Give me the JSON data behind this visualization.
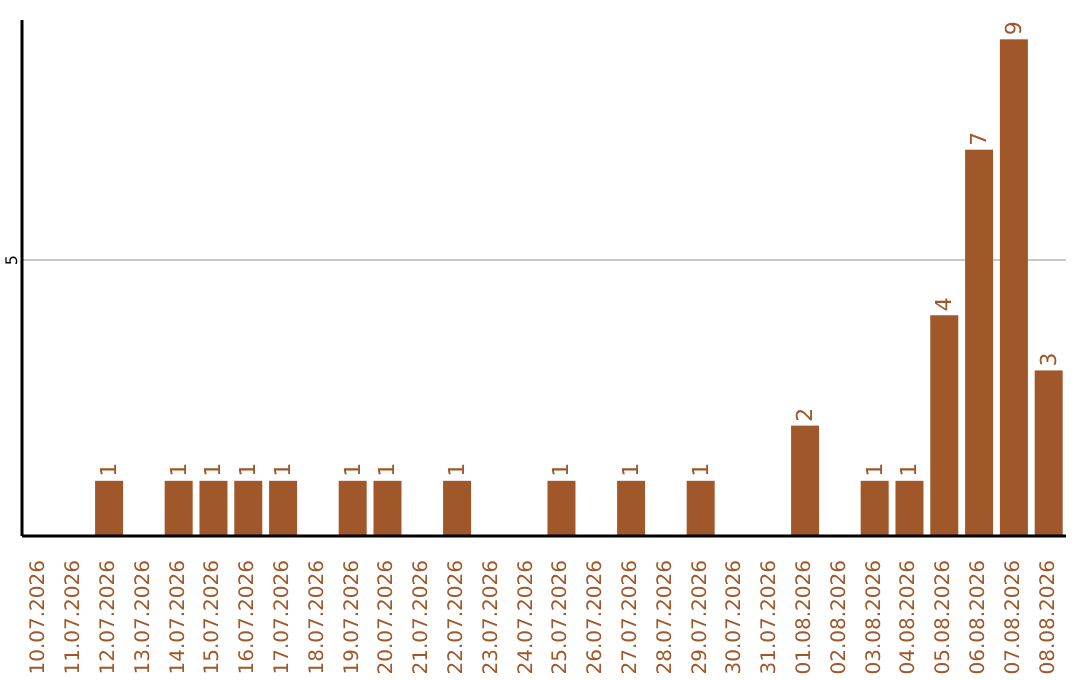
{
  "chart_data": {
    "type": "bar",
    "categories": [
      "10.07.2026",
      "11.07.2026",
      "12.07.2026",
      "13.07.2026",
      "14.07.2026",
      "15.07.2026",
      "16.07.2026",
      "17.07.2026",
      "18.07.2026",
      "19.07.2026",
      "20.07.2026",
      "21.07.2026",
      "22.07.2026",
      "23.07.2026",
      "24.07.2026",
      "25.07.2026",
      "26.07.2026",
      "27.07.2026",
      "28.07.2026",
      "29.07.2026",
      "30.07.2026",
      "31.07.2026",
      "01.08.2026",
      "02.08.2026",
      "03.08.2026",
      "04.08.2026",
      "05.08.2026",
      "06.08.2026",
      "07.08.2026",
      "08.08.2026"
    ],
    "values": [
      0,
      0,
      1,
      0,
      1,
      1,
      1,
      1,
      0,
      1,
      1,
      0,
      1,
      0,
      0,
      1,
      0,
      1,
      0,
      1,
      0,
      0,
      2,
      0,
      1,
      1,
      4,
      7,
      9,
      3
    ],
    "value_labels": [
      null,
      null,
      "1",
      null,
      "1",
      "1",
      "1",
      "1",
      null,
      "1",
      "1",
      null,
      "1",
      null,
      null,
      "1",
      null,
      "1",
      null,
      "1",
      null,
      null,
      "2",
      null,
      "1",
      "1",
      "4",
      "7",
      "9",
      "3"
    ],
    "color": "#a0572a",
    "ylim": [
      0,
      9.35
    ],
    "yticks": [
      5
    ],
    "grid": "y"
  }
}
